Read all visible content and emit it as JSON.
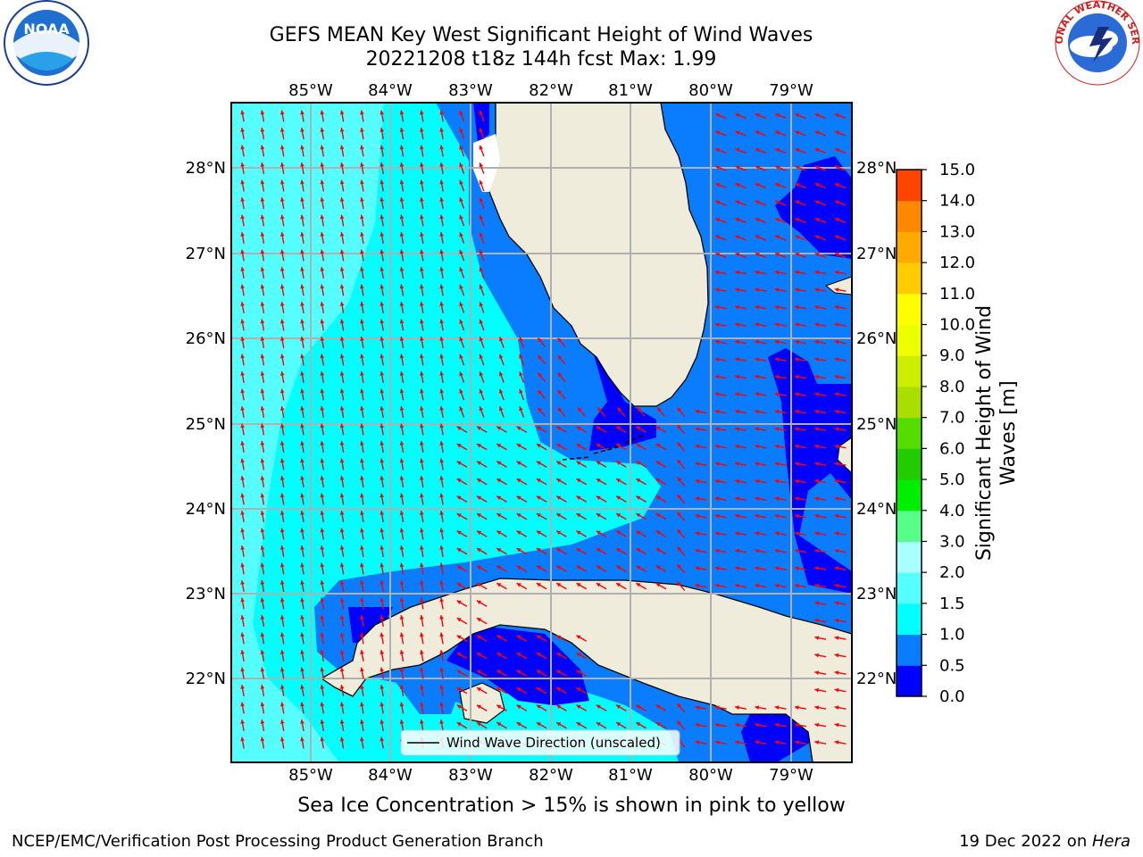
{
  "header": {
    "title_line1": "GEFS MEAN Key West Significant Height of Wind Waves",
    "title_line2": "20221208 t18z 144h fcst   Max: 1.99"
  },
  "logos": {
    "left": "noaa-logo",
    "right": "national-weather-service-logo",
    "left_text": "NOAA",
    "right_text": "NATIONAL WEATHER SERVICE"
  },
  "map": {
    "lon_labels": [
      "85°W",
      "84°W",
      "83°W",
      "82°W",
      "81°W",
      "80°W",
      "79°W"
    ],
    "lat_labels": [
      "28°N",
      "27°N",
      "26°N",
      "25°N",
      "24°N",
      "23°N",
      "22°N"
    ],
    "legend": "Wind Wave Direction (unscaled)",
    "arrow_color": "#ff0000"
  },
  "colorbar": {
    "label": "Significant Height of Wind Waves [m]",
    "ticks": [
      "0.0",
      "0.5",
      "1.0",
      "1.5",
      "2.0",
      "3.0",
      "4.0",
      "5.0",
      "6.0",
      "7.0",
      "8.0",
      "9.0",
      "10.0",
      "11.0",
      "12.0",
      "13.0",
      "14.0",
      "15.0"
    ],
    "colors": [
      "#0000ff",
      "#0a7dff",
      "#00ffff",
      "#55ffff",
      "#aaffff",
      "#55ff88",
      "#00ee00",
      "#22cc00",
      "#55dd00",
      "#aadd00",
      "#ccee00",
      "#eeff00",
      "#ffff00",
      "#ffcc00",
      "#ffaa00",
      "#ff8800",
      "#ff4400",
      "#ff0000"
    ]
  },
  "footer": {
    "note": "Sea Ice Concentration > 15% is shown in pink to yellow",
    "credit": "NCEP/EMC/Verification Post Processing Product Generation Branch",
    "date": "19 Dec 2022 on ",
    "host": "Hera"
  }
}
